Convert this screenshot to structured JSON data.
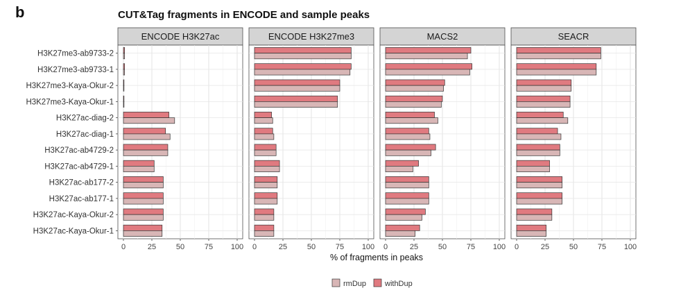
{
  "panel_letter": "b",
  "chart_data": {
    "type": "bar",
    "orientation": "horizontal",
    "title": "CUT&Tag fragments in ENCODE and sample peaks",
    "xlabel": "% of fragments in peaks",
    "ylabel": "",
    "xlim": [
      0,
      100
    ],
    "xticks": [
      0,
      25,
      50,
      75,
      100
    ],
    "grid": true,
    "legend_position": "bottom",
    "categories": [
      "H3K27me3-ab9733-2",
      "H3K27me3-ab9733-1",
      "H3K27me3-Kaya-Okur-2",
      "H3K27me3-Kaya-Okur-1",
      "H3K27ac-diag-2",
      "H3K27ac-diag-1",
      "H3K27ac-ab4729-2",
      "H3K27ac-ab4729-1",
      "H3K27ac-ab177-2",
      "H3K27ac-ab177-1",
      "H3K27ac-Kaya-Okur-2",
      "H3K27ac-Kaya-Okur-1"
    ],
    "series_legend": [
      {
        "key": "rmDup",
        "name": "rmDup",
        "color": "#d8b6b6"
      },
      {
        "key": "withDup",
        "name": "withDup",
        "color": "#e07a80"
      }
    ],
    "facets": [
      {
        "name": "ENCODE H3K27ac",
        "withDup": [
          1,
          1,
          0.5,
          0.5,
          40,
          37,
          39,
          27,
          35,
          35,
          35,
          34
        ],
        "rmDup": [
          1,
          1,
          0.5,
          0.5,
          45,
          41,
          39,
          27,
          35,
          35,
          35,
          34
        ]
      },
      {
        "name": "ENCODE H3K27me3",
        "withDup": [
          85,
          85,
          75,
          73,
          15,
          16,
          19,
          22,
          20,
          20,
          17,
          17
        ],
        "rmDup": [
          85,
          84,
          75,
          73,
          16,
          17,
          19,
          22,
          20,
          20,
          17,
          17
        ]
      },
      {
        "name": "MACS2",
        "withDup": [
          75,
          76,
          52,
          50,
          43,
          38,
          44,
          29,
          38,
          38,
          35,
          30
        ],
        "rmDup": [
          72,
          74,
          51,
          49,
          46,
          39,
          40,
          24,
          38,
          38,
          32,
          26
        ]
      },
      {
        "name": "SEACR",
        "withDup": [
          74,
          70,
          48,
          47,
          41,
          36,
          38,
          29,
          40,
          40,
          31,
          26
        ],
        "rmDup": [
          74,
          70,
          48,
          47,
          45,
          39,
          38,
          29,
          40,
          40,
          31,
          26
        ]
      }
    ]
  }
}
